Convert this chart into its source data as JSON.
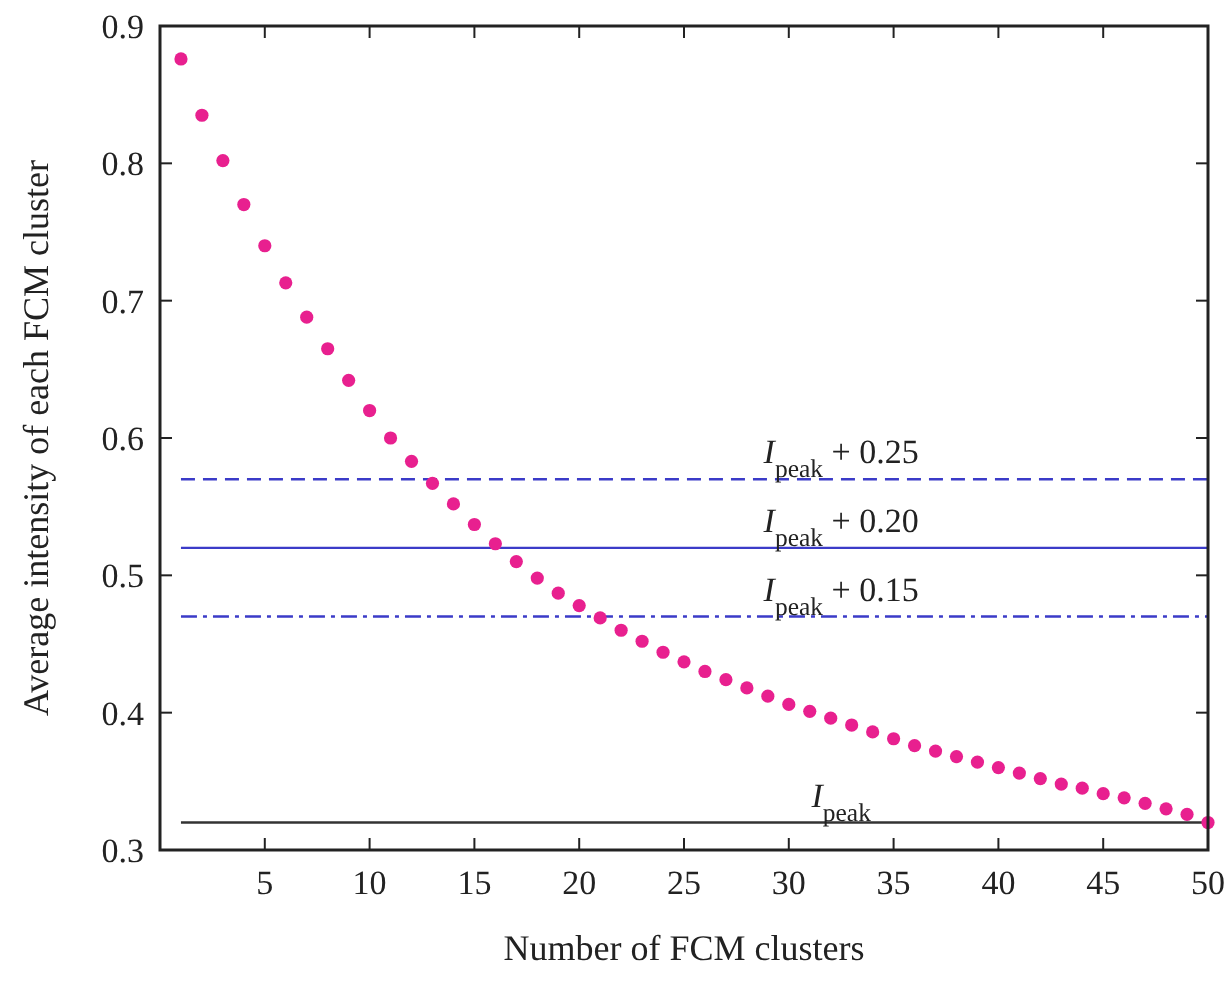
{
  "chart_data": {
    "type": "scatter",
    "xlabel": "Number of FCM clusters",
    "ylabel": "Average intensity of each FCM cluster",
    "x": [
      1,
      2,
      3,
      4,
      5,
      6,
      7,
      8,
      9,
      10,
      11,
      12,
      13,
      14,
      15,
      16,
      17,
      18,
      19,
      20,
      21,
      22,
      23,
      24,
      25,
      26,
      27,
      28,
      29,
      30,
      31,
      32,
      33,
      34,
      35,
      36,
      37,
      38,
      39,
      40,
      41,
      42,
      43,
      44,
      45,
      46,
      47,
      48,
      49,
      50
    ],
    "series": [
      {
        "color": "#e8208f",
        "values": [
          0.876,
          0.835,
          0.802,
          0.77,
          0.74,
          0.713,
          0.688,
          0.665,
          0.642,
          0.62,
          0.6,
          0.583,
          0.567,
          0.552,
          0.537,
          0.523,
          0.51,
          0.498,
          0.487,
          0.478,
          0.469,
          0.46,
          0.452,
          0.444,
          0.437,
          0.43,
          0.424,
          0.418,
          0.412,
          0.406,
          0.401,
          0.396,
          0.391,
          0.386,
          0.381,
          0.376,
          0.372,
          0.368,
          0.364,
          0.36,
          0.356,
          0.352,
          0.348,
          0.345,
          0.341,
          0.338,
          0.334,
          0.33,
          0.326,
          0.32
        ]
      }
    ],
    "marker": "circle",
    "xlim": [
      0,
      50
    ],
    "xticks": [
      5,
      10,
      15,
      20,
      25,
      30,
      35,
      40,
      45,
      50
    ],
    "ylim": [
      0.3,
      0.9
    ],
    "yticks": [
      0.3,
      0.4,
      0.5,
      0.6,
      0.7,
      0.8,
      0.9
    ],
    "grid": false,
    "ref_lines": [
      {
        "axis": "y",
        "value": 0.57,
        "label": "I$_{peak}$ + 0.25",
        "color": "#3b3bc8",
        "line_style": "dashed"
      },
      {
        "axis": "y",
        "value": 0.52,
        "label": "I$_{peak}$ + 0.20",
        "color": "#3b3bc8",
        "line_style": "solid"
      },
      {
        "axis": "y",
        "value": 0.47,
        "label": "I$_{peak}$ + 0.15",
        "color": "#3b3bc8",
        "line_style": "dashdot"
      },
      {
        "axis": "y",
        "value": 0.32,
        "label": "I$_{peak}$",
        "color": "#333333",
        "line_style": "solid"
      }
    ]
  }
}
